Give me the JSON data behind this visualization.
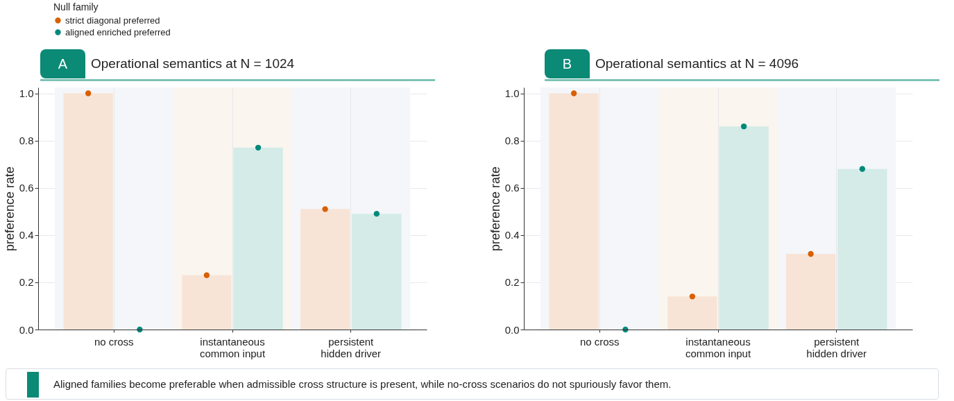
{
  "chart_data": [
    {
      "type": "bar",
      "title": "Operational semantics at N = 1024",
      "ylabel": "preference rate",
      "legend_title": "Null family",
      "legend": "top left",
      "grid": true,
      "marker": "circle",
      "categories": [
        "no cross",
        "instantaneous common input",
        "persistent hidden driver"
      ],
      "series": [
        {
          "color": "#f8e4d6",
          "values": [
            1.0,
            0.23,
            0.51
          ]
        },
        {
          "color": "#d4ebe8",
          "values": [
            0.0,
            0.77,
            0.49
          ]
        },
        {
          "type": "scatter",
          "name": "strict diagonal preferred",
          "color": "#d95f02",
          "x": [
            "no cross",
            "instantaneous common input",
            "persistent hidden driver"
          ],
          "values": [
            1.0,
            0.23,
            0.51
          ]
        },
        {
          "type": "scatter",
          "name": "aligned enriched preferred",
          "color": "#00897b",
          "x": [
            "no cross",
            "instantaneous common input",
            "persistent hidden driver"
          ],
          "values": [
            0.0,
            0.77,
            0.49
          ]
        }
      ],
      "ylim": [
        0,
        1.025
      ],
      "yticks": [
        {
          "value": 0,
          "label": "0.0"
        },
        {
          "value": 0.2,
          "label": "0.2"
        },
        {
          "value": 0.4,
          "label": "0.4"
        },
        {
          "value": 0.6,
          "label": "0.6"
        },
        {
          "value": 0.8,
          "label": "0.8"
        },
        {
          "value": 1,
          "label": "1.0"
        }
      ],
      "bands": [
        {
          "axis": "x",
          "from": "no cross",
          "to": "no cross",
          "color": "#f4f6fa"
        },
        {
          "axis": "x",
          "from": "instantaneous common input",
          "to": "instantaneous common input",
          "color": "#faf5ef"
        },
        {
          "axis": "x",
          "from": "persistent hidden driver",
          "to": "persistent hidden driver",
          "color": "#f4f6fa"
        }
      ],
      "annotations": [
        "A",
        "Aligned families become preferable when admissible cross structure is present, while no-cross scenarios do not spuriously favor them."
      ]
    },
    {
      "type": "bar",
      "title": "Operational semantics at N = 4096",
      "ylabel": "preference rate",
      "grid": true,
      "marker": "circle",
      "categories": [
        "no cross",
        "instantaneous common input",
        "persistent hidden driver"
      ],
      "series": [
        {
          "color": "#f8e4d6",
          "values": [
            1.0,
            0.14,
            0.32
          ]
        },
        {
          "color": "#d4ebe8",
          "values": [
            0.0,
            0.86,
            0.68
          ]
        },
        {
          "type": "scatter",
          "color": "#d95f02",
          "x": [
            "no cross",
            "instantaneous common input",
            "persistent hidden driver"
          ],
          "values": [
            1.0,
            0.14,
            0.32
          ]
        },
        {
          "type": "scatter",
          "color": "#00897b",
          "x": [
            "no cross",
            "instantaneous common input",
            "persistent hidden driver"
          ],
          "values": [
            0.0,
            0.86,
            0.68
          ]
        }
      ],
      "ylim": [
        0,
        1.025
      ],
      "yticks": [
        {
          "value": 0,
          "label": "0.0"
        },
        {
          "value": 0.2,
          "label": "0.2"
        },
        {
          "value": 0.4,
          "label": "0.4"
        },
        {
          "value": 0.6,
          "label": "0.6"
        },
        {
          "value": 0.8,
          "label": "0.8"
        },
        {
          "value": 1,
          "label": "1.0"
        }
      ],
      "bands": [
        {
          "axis": "x",
          "from": "no cross",
          "to": "no cross",
          "color": "#f4f6fa"
        },
        {
          "axis": "x",
          "from": "instantaneous common input",
          "to": "instantaneous common input",
          "color": "#faf5ef"
        },
        {
          "axis": "x",
          "from": "persistent hidden driver",
          "to": "persistent hidden driver",
          "color": "#f4f6fa"
        }
      ],
      "annotations": [
        "B"
      ]
    }
  ]
}
